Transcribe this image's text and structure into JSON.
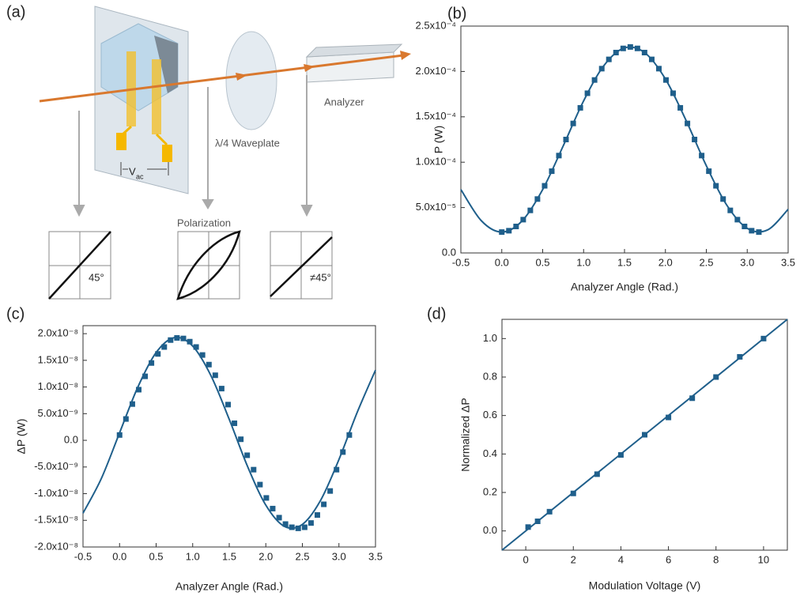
{
  "diagram": {
    "panel_label": "(a)",
    "voltage": "V",
    "voltage_sub": "ac",
    "waveplate": "λ/4 Waveplate",
    "analyzer": "Analyzer",
    "polarization": "Polarization",
    "angle_in": "45°",
    "angle_out": "≠45°"
  },
  "chart_data": [
    {
      "type": "scatter",
      "panel_label": "(b)",
      "x_label": "Analyzer Angle (Rad.)",
      "y_label": "P (W)",
      "color": "#1f5f8b",
      "xlim": [
        -0.5,
        3.5
      ],
      "xticks": [
        -0.5,
        {
          "value": 0,
          "label": "0.0"
        },
        0.5,
        {
          "value": 1,
          "label": "1.0"
        },
        1.5,
        {
          "value": 2,
          "label": "2.0"
        },
        2.5,
        {
          "value": 3,
          "label": "3.0"
        },
        3.5
      ],
      "ylim": [
        0,
        0.00025
      ],
      "yticks": [
        {
          "value": 0,
          "label": "0.0"
        },
        {
          "value": 5e-05,
          "label": "5.0x10⁻⁵"
        },
        {
          "value": 0.0001,
          "label": "1.0x10⁻⁴"
        },
        {
          "value": 0.00015,
          "label": "1.5x10⁻⁴"
        },
        {
          "value": 0.0002,
          "label": "2.0x10⁻⁴"
        },
        {
          "value": 0.00025,
          "label": "2.5x10⁻⁴"
        }
      ],
      "points": {
        "x": [
          0,
          0.087,
          0.175,
          0.262,
          0.349,
          0.436,
          0.524,
          0.611,
          0.698,
          0.785,
          0.873,
          0.96,
          1.047,
          1.134,
          1.222,
          1.309,
          1.396,
          1.484,
          1.571,
          1.658,
          1.745,
          1.833,
          1.92,
          2.007,
          2.094,
          2.182,
          2.269,
          2.356,
          2.443,
          2.531,
          2.618,
          2.705,
          2.793,
          2.88,
          2.967,
          3.054,
          3.142
        ],
        "y": [
          2.3e-05,
          2.45e-05,
          2.92e-05,
          3.67e-05,
          4.69e-05,
          5.94e-05,
          7.4e-05,
          9.01e-05,
          0.0001073,
          0.000125,
          0.0001427,
          0.0001599,
          0.000176,
          0.0001906,
          0.0002031,
          0.0002133,
          0.0002208,
          0.0002254,
          0.000227,
          0.0002254,
          0.0002208,
          0.0002133,
          0.0002031,
          0.0001906,
          0.000176,
          0.0001599,
          0.0001427,
          0.000125,
          0.0001073,
          9.01e-05,
          7.4e-05,
          5.94e-05,
          4.69e-05,
          3.67e-05,
          2.92e-05,
          2.45e-05,
          2.3e-05
        ]
      },
      "fit": {
        "x": [
          -0.5,
          -0.25,
          0,
          0.25,
          0.5,
          0.75,
          1.0,
          1.25,
          1.5,
          1.75,
          2.0,
          2.25,
          2.5,
          2.75,
          3.0,
          3.25,
          3.5
        ],
        "y": [
          6.99e-05,
          3.55e-05,
          2.3e-05,
          3.55e-05,
          6.99e-05,
          0.0001178,
          0.0001675,
          0.0002067,
          0.000226,
          0.0002205,
          0.0001917,
          0.0001465,
          9.61e-05,
          5.27e-05,
          2.71e-05,
          2.54e-05,
          4.81e-05
        ]
      }
    },
    {
      "type": "scatter",
      "panel_label": "(c)",
      "x_label": "Analyzer Angle (Rad.)",
      "y_label": "ΔP (W)",
      "color": "#1f5f8b",
      "xlim": [
        -0.5,
        3.5
      ],
      "xticks": [
        -0.5,
        {
          "value": 0,
          "label": "0.0"
        },
        0.5,
        {
          "value": 1,
          "label": "1.0"
        },
        1.5,
        {
          "value": 2,
          "label": "2.0"
        },
        2.5,
        {
          "value": 3,
          "label": "3.0"
        },
        3.5
      ],
      "ylim": [
        -2e-08,
        2.15e-08
      ],
      "yticks": [
        {
          "value": -2e-08,
          "label": "-2.0x10⁻⁸"
        },
        {
          "value": -1.5e-08,
          "label": "-1.5x10⁻⁸"
        },
        {
          "value": -1e-08,
          "label": "-1.0x10⁻⁸"
        },
        {
          "value": -5e-09,
          "label": "-5.0x10⁻⁹"
        },
        {
          "value": 0,
          "label": "0.0"
        },
        {
          "value": 5e-09,
          "label": "5.0x10⁻⁹"
        },
        {
          "value": 1e-08,
          "label": "1.0x10⁻⁸"
        },
        {
          "value": 1.5e-08,
          "label": "1.5x10⁻⁸"
        },
        {
          "value": 2e-08,
          "label": "2.0x10⁻⁸"
        }
      ],
      "points": {
        "x": [
          0,
          0.087,
          0.175,
          0.262,
          0.349,
          0.436,
          0.524,
          0.611,
          0.698,
          0.785,
          0.873,
          0.96,
          1.047,
          1.134,
          1.222,
          1.309,
          1.396,
          1.484,
          1.571,
          1.658,
          1.745,
          1.833,
          1.92,
          2.007,
          2.094,
          2.182,
          2.269,
          2.356,
          2.443,
          2.531,
          2.618,
          2.705,
          2.793,
          2.88,
          2.967,
          3.054,
          3.142
        ],
        "y": [
          1e-09,
          4e-09,
          6.8e-09,
          9.5e-09,
          1.2e-08,
          1.45e-08,
          1.62e-08,
          1.75e-08,
          1.88e-08,
          1.92e-08,
          1.91e-08,
          1.85e-08,
          1.75e-08,
          1.6e-08,
          1.42e-08,
          1.22e-08,
          9.7e-09,
          6.7e-09,
          3.2e-09,
          2e-10,
          -2.8e-09,
          -5.5e-09,
          -8.3e-09,
          -1.08e-08,
          -1.28e-08,
          -1.45e-08,
          -1.57e-08,
          -1.63e-08,
          -1.65e-08,
          -1.63e-08,
          -1.55e-08,
          -1.4e-08,
          -1.2e-08,
          -9.5e-09,
          -5.5e-09,
          -2.2e-09,
          1e-09
        ]
      },
      "fit": {
        "x": [
          -0.5,
          -0.25,
          0,
          0.25,
          0.5,
          0.75,
          1.0,
          1.25,
          1.5,
          1.75,
          2.0,
          2.25,
          2.5,
          2.75,
          3.0,
          3.25,
          3.5
        ],
        "y": [
          -1.366e-08,
          -7.18e-09,
          1.4e-09,
          9.98e-09,
          1.646e-08,
          1.926e-08,
          1.768e-08,
          1.211e-08,
          3.93e-09,
          -4.88e-09,
          -1.215e-08,
          -1.61e-08,
          -1.576e-08,
          -1.123e-08,
          -3.6e-09,
          5.25e-09,
          1.316e-08
        ]
      }
    },
    {
      "type": "scatter",
      "panel_label": "(d)",
      "x_label": "Modulation Voltage (V)",
      "y_label": "Normalized ΔP",
      "color": "#1f5f8b",
      "xlim": [
        -1,
        11
      ],
      "xticks": [
        0,
        2,
        4,
        6,
        8,
        10
      ],
      "ylim": [
        -0.1,
        1.1
      ],
      "yticks": [
        {
          "value": 0,
          "label": "0.0"
        },
        0.2,
        0.4,
        0.6,
        0.8,
        {
          "value": 1,
          "label": "1.0"
        }
      ],
      "points": {
        "x": [
          0.1,
          0.5,
          1,
          2,
          3,
          4,
          5,
          6,
          7,
          8,
          9,
          10
        ],
        "y": [
          0.02,
          0.05,
          0.1,
          0.195,
          0.295,
          0.395,
          0.5,
          0.59,
          0.69,
          0.8,
          0.905,
          1.0
        ]
      },
      "fit": {
        "x": [
          -1,
          11
        ],
        "y": [
          -0.1,
          1.1
        ]
      }
    }
  ]
}
